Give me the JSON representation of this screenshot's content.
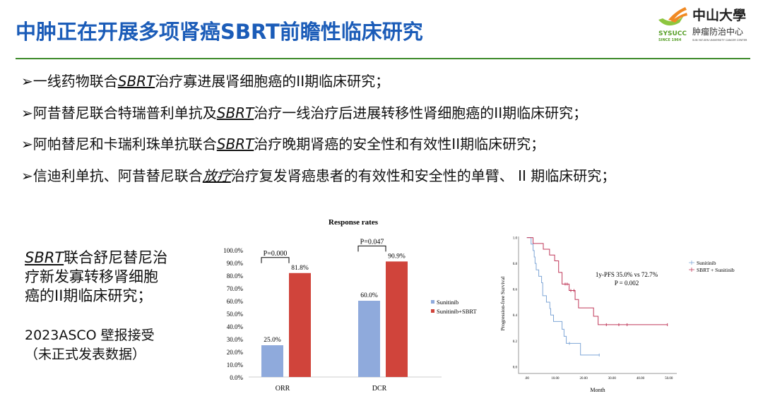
{
  "title": "中肿正在开展多项肾癌SBRT前瞻性临床研究",
  "logo": {
    "cn_name": "中山大學",
    "cn_sub": "肿瘤防治中心",
    "abbr": "SYSUCC",
    "since": "SINCE 1964",
    "en": "SUN YAT-SEN UNIVERSITY CANCER CENTER"
  },
  "bullets": [
    {
      "pre": "➢一线药物联合",
      "u": "SBRT",
      "post": "治疗寡进展肾细胞癌的II期临床研究；"
    },
    {
      "pre": "➢阿昔替尼联合特瑞普利单抗及",
      "u": "SBRT",
      "post": "治疗一线治疗后进展转移性肾细胞癌的II期临床研究；"
    },
    {
      "pre": "➢阿帕替尼和卡瑞利珠单抗联合",
      "u": "SBRT",
      "post": "治疗晚期肾癌的安全性和有效性II期临床研究；"
    },
    {
      "pre": "➢信迪利单抗、阿昔替尼联合",
      "u": "放疗",
      "post": "治疗复发肾癌患者的有效性和安全性的单臂、 II 期临床研究；"
    }
  ],
  "side": {
    "u": "SBRT",
    "line1": "联合舒尼替尼治",
    "line2": "疗新发寡转移肾细胞",
    "line3": "癌的II期临床研究；",
    "note1": "2023ASCO 壁报接受",
    "note2": "（未正式发表数据）"
  },
  "chart_data": [
    {
      "type": "bar",
      "title": "Response rates",
      "categories": [
        "ORR",
        "DCR"
      ],
      "series": [
        {
          "name": "Sunitinib",
          "values": [
            25.0,
            60.0
          ],
          "color": "#8faadc"
        },
        {
          "name": "Sunitinib+SBRT",
          "values": [
            81.8,
            90.9
          ],
          "color": "#d0443b"
        }
      ],
      "data_labels": [
        [
          "25.0%",
          "60.0%"
        ],
        [
          "81.8%",
          "90.9%"
        ]
      ],
      "annotations": [
        "P=0.000",
        "P=0.047"
      ],
      "ylim": [
        0,
        100
      ],
      "yticks": [
        "0.0%",
        "10.0%",
        "20.0%",
        "30.0%",
        "40.0%",
        "50.0%",
        "60.0%",
        "70.0%",
        "80.0%",
        "90.0%",
        "100.0%"
      ],
      "legend": "right"
    },
    {
      "type": "line",
      "step": true,
      "xlabel": "Month",
      "ylabel": "Progression-free Survival",
      "xlim": [
        0,
        50
      ],
      "ylim": [
        0,
        1
      ],
      "xticks": [
        ".00",
        "10.00",
        "20.00",
        "30.00",
        "40.00",
        "50.00"
      ],
      "yticks": [
        "0.0",
        "0.2",
        "0.4",
        "0.6",
        "0.8",
        "1.0"
      ],
      "annotation": [
        "1y-PFS 35.0% vs 72.7%",
        "P = 0.002"
      ],
      "legend": "right",
      "series": [
        {
          "name": "Sunitinib",
          "color": "#7fa6d6",
          "steps": [
            [
              0,
              1
            ],
            [
              1.5,
              0.95
            ],
            [
              2.2,
              0.9
            ],
            [
              2.6,
              0.85
            ],
            [
              2.9,
              0.8
            ],
            [
              3.3,
              0.75
            ],
            [
              4.2,
              0.7
            ],
            [
              5.2,
              0.65
            ],
            [
              5.6,
              0.55
            ],
            [
              6.9,
              0.5
            ],
            [
              8.1,
              0.45
            ],
            [
              8.4,
              0.4
            ],
            [
              9.4,
              0.35
            ],
            [
              12.4,
              0.29
            ],
            [
              13.1,
              0.235
            ],
            [
              13.9,
              0.18
            ],
            [
              18.9,
              0.09
            ]
          ],
          "end": 25.5,
          "censored": [
            15,
            25.5
          ]
        },
        {
          "name": "SBRT + Sunitinib",
          "color": "#c0395a",
          "steps": [
            [
              0,
              1
            ],
            [
              2.2,
              0.955
            ],
            [
              5.8,
              0.91
            ],
            [
              8,
              0.865
            ],
            [
              9.8,
              0.82
            ],
            [
              11.2,
              0.73
            ],
            [
              12.4,
              0.64
            ],
            [
              14.9,
              0.59
            ],
            [
              17,
              0.52
            ],
            [
              18.2,
              0.455
            ],
            [
              23.5,
              0.39
            ],
            [
              25.1,
              0.325
            ]
          ],
          "end": 49.5,
          "censored": [
            13.5,
            14.2,
            15.5,
            16.6,
            28,
            32.4,
            35.3,
            49.5
          ]
        }
      ]
    }
  ]
}
